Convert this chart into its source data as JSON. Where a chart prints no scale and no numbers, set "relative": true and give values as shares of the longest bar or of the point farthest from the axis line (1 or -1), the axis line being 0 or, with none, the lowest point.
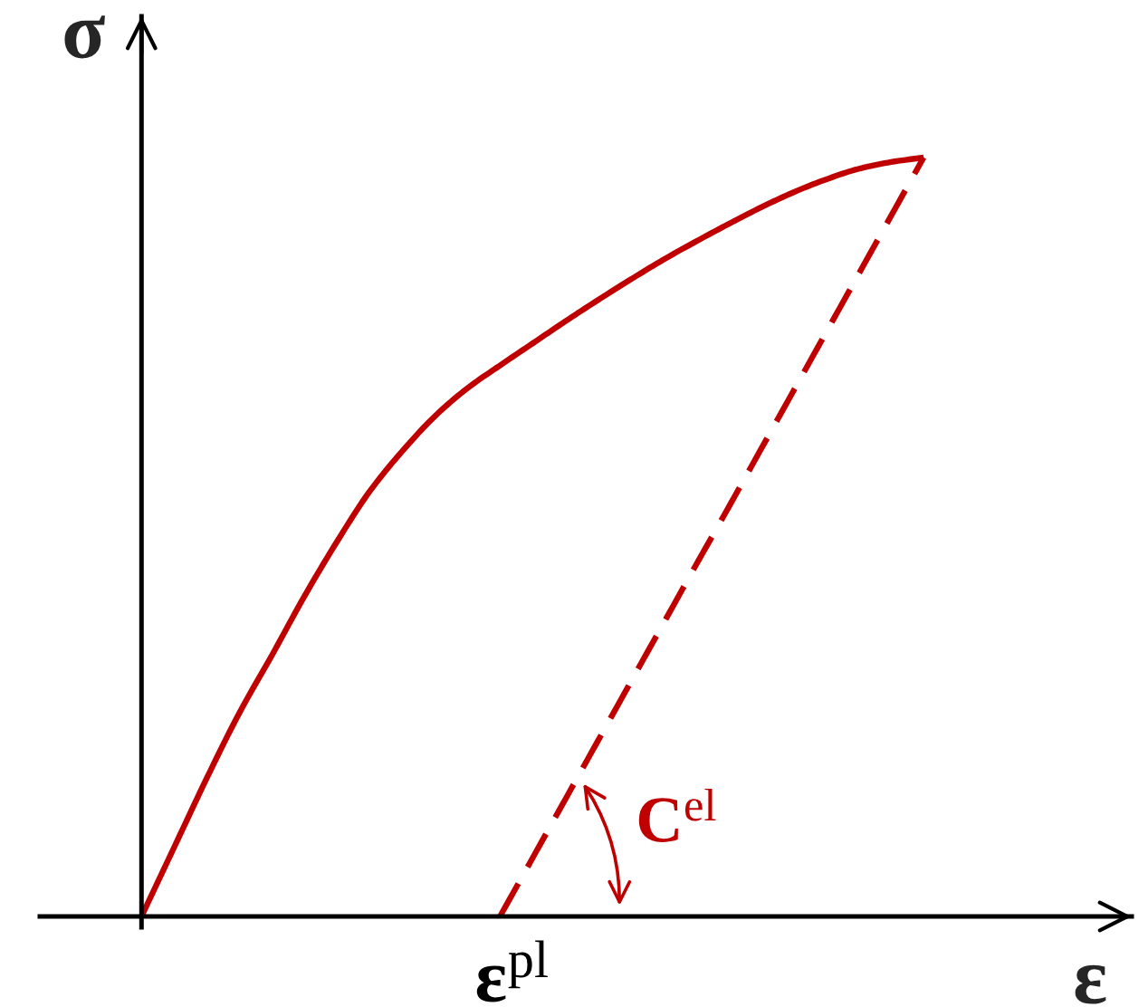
{
  "chart_data": {
    "type": "line",
    "relative": true,
    "categories": [
      null,
      null,
      null,
      null,
      null,
      null,
      null,
      null,
      null,
      null,
      null,
      null,
      null,
      null,
      null,
      null,
      null,
      null,
      null,
      null,
      null,
      null,
      null,
      null,
      null
    ],
    "series": [
      {
        "color": "#c00000",
        "line_style": "solid",
        "values": [
          0,
          0.091,
          0.182,
          0.268,
          0.344,
          0.422,
          0.494,
          0.56,
          0.613,
          0.659,
          0.696,
          0.726,
          0.755,
          0.784,
          0.812,
          0.839,
          0.865,
          0.889,
          0.912,
          0.934,
          0.954,
          0.971,
          0.985,
          0.994,
          1.0
        ]
      },
      {
        "color": "#c00000",
        "line_style": "dashed",
        "values": [
          null,
          null,
          null,
          null,
          null,
          null,
          null,
          null,
          null,
          null,
          null,
          0,
          0.077,
          0.154,
          0.231,
          0.308,
          0.385,
          0.462,
          0.538,
          0.615,
          0.692,
          0.769,
          0.846,
          0.923,
          1.0
        ]
      }
    ],
    "xlabel": "ε",
    "ylabel": "σ",
    "annotations": [
      "C$^{el}$",
      {
        "text": "ε$^{pl}$",
        "y": 0
      }
    ],
    "marker": "none"
  }
}
